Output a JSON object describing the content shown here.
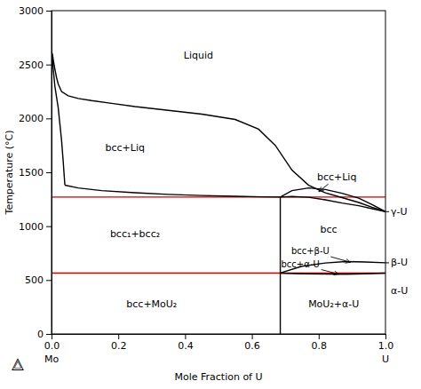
{
  "chart_data": {
    "type": "line",
    "xlabel": "Mole Fraction of U",
    "ylabel": "Temperature (°C)",
    "xlim": [
      0.0,
      1.0
    ],
    "ylim": [
      0,
      3000
    ],
    "xticks": [
      {
        "value": 0.0,
        "label": "0.0"
      },
      0.2,
      0.4,
      0.6,
      0.8,
      {
        "value": 1.0,
        "label": "1.0"
      }
    ],
    "yticks": [
      0,
      500,
      1000,
      1500,
      2000,
      2500,
      3000
    ],
    "grid": false,
    "series": [
      {
        "color": "#000000",
        "x": [
          0.0,
          0.003,
          0.006,
          0.01,
          0.015,
          0.02,
          0.03,
          0.05,
          0.08,
          0.12,
          0.18,
          0.25,
          0.35,
          0.45,
          0.55,
          0.62,
          0.67,
          0.72,
          0.77,
          0.82,
          0.87,
          0.92,
          0.96,
          1.0
        ],
        "values": [
          2620,
          2590,
          2530,
          2460,
          2380,
          2320,
          2250,
          2210,
          2185,
          2165,
          2140,
          2110,
          2075,
          2040,
          1990,
          1900,
          1750,
          1520,
          1380,
          1310,
          1265,
          1220,
          1175,
          1135
        ]
      },
      {
        "color": "#000000",
        "x": [
          0.0,
          0.003,
          0.006,
          0.01,
          0.015,
          0.02,
          0.025,
          0.03,
          0.035,
          0.04
        ],
        "values": [
          2620,
          2550,
          2430,
          2300,
          2200,
          2100,
          1950,
          1800,
          1600,
          1380
        ]
      },
      {
        "color": "#000000",
        "x": [
          0.04,
          0.08,
          0.15,
          0.25,
          0.35,
          0.45,
          0.55,
          0.63,
          0.685
        ],
        "values": [
          1380,
          1355,
          1330,
          1310,
          1295,
          1285,
          1278,
          1272,
          1270
        ]
      },
      {
        "color": "#000000",
        "x": [
          0.685,
          0.72,
          0.77,
          0.82,
          0.87,
          0.92,
          0.96,
          1.0
        ],
        "values": [
          1270,
          1275,
          1268,
          1245,
          1215,
          1190,
          1162,
          1135
        ]
      },
      {
        "color": "#000000",
        "x": [
          0.685,
          0.72,
          0.77,
          0.82,
          0.87,
          0.92,
          0.96,
          1.0
        ],
        "values": [
          1270,
          1330,
          1355,
          1340,
          1305,
          1260,
          1200,
          1135
        ]
      },
      {
        "color": "#000000",
        "x": [
          0.685,
          0.685
        ],
        "values": [
          0,
          1270
        ]
      },
      {
        "color": "#000000",
        "x": [
          0.685,
          0.75,
          0.82,
          0.88,
          0.94,
          1.0
        ],
        "values": [
          565,
          628,
          658,
          672,
          668,
          660
        ]
      },
      {
        "color": "#000000",
        "x": [
          0.685,
          0.75,
          0.82,
          0.88,
          0.94,
          1.0
        ],
        "values": [
          565,
          558,
          555,
          554,
          558,
          565
        ]
      }
    ],
    "hlines": {
      "values": [
        1270,
        565
      ],
      "color": "#cc0000"
    },
    "annotations": [
      {
        "text": "Liquid",
        "x": 0.44,
        "y": 2580
      },
      {
        "text": "bcc+Liq",
        "x": 0.22,
        "y": 1730
      },
      {
        "text": "bcc₁+bcc₂",
        "x": 0.25,
        "y": 930
      },
      {
        "text": "bcc",
        "x": 0.83,
        "y": 970
      },
      {
        "text": "bcc+MoU₂",
        "x": 0.3,
        "y": 280
      },
      {
        "text": "MoU₂+α-U",
        "x": 0.845,
        "y": 280
      }
    ],
    "arrow_annotations": [
      {
        "text": "bcc+Liq",
        "x": 0.8,
        "y": 1320,
        "text_x": 0.795,
        "text_y": 1400
      },
      {
        "text": "bcc+β-U",
        "x": 0.895,
        "y": 665,
        "text_x": 0.775,
        "text_y": 725
      },
      {
        "text": "bcc+α-U",
        "x": 0.86,
        "y": 555,
        "text_x": 0.745,
        "text_y": 648
      }
    ],
    "side_labels": [
      {
        "text": "γ-U",
        "y": 1135,
        "tick": true
      },
      {
        "text": "β-U",
        "y": 660,
        "tick": true
      },
      {
        "text": "α-U",
        "y": 400,
        "tick": false
      }
    ],
    "end_labels": [
      {
        "text": "Mo",
        "x": 0.0
      },
      {
        "text": "U",
        "x": 1.0
      }
    ],
    "logo": "△"
  }
}
